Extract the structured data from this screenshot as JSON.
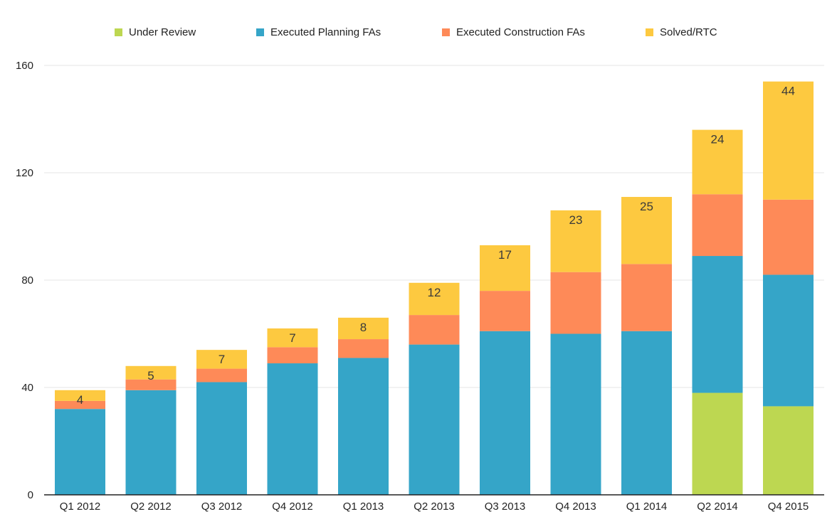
{
  "chart_data": {
    "type": "bar",
    "stacked": true,
    "title": "",
    "xlabel": "",
    "ylabel": "",
    "ylim": [
      0,
      160
    ],
    "yticks": [
      0,
      40,
      80,
      120,
      160
    ],
    "grid": true,
    "legend_position": "top",
    "categories": [
      "Q1 2012",
      "Q2 2012",
      "Q3 2012",
      "Q4 2012",
      "Q1 2013",
      "Q2 2013",
      "Q3 2013",
      "Q4 2013",
      "Q1 2014",
      "Q2 2014",
      "Q4 2015"
    ],
    "series": [
      {
        "name": "Under Review",
        "color": "#bdd751",
        "values": [
          0,
          0,
          0,
          0,
          0,
          0,
          0,
          0,
          0,
          38,
          33
        ]
      },
      {
        "name": "Executed Planning FAs",
        "color": "#35a5c8",
        "values": [
          32,
          39,
          42,
          49,
          51,
          56,
          61,
          60,
          61,
          51,
          49
        ]
      },
      {
        "name": "Executed Construction FAs",
        "color": "#fe8a58",
        "values": [
          3,
          4,
          5,
          6,
          7,
          11,
          15,
          23,
          25,
          23,
          28
        ]
      },
      {
        "name": "Solved/RTC",
        "color": "#fdc940",
        "values": [
          4,
          5,
          7,
          7,
          8,
          12,
          17,
          23,
          25,
          24,
          44
        ]
      }
    ],
    "data_labels": [
      "4",
      "5",
      "7",
      "7",
      "8",
      "12",
      "17",
      "23",
      "25",
      "24",
      "44"
    ]
  }
}
